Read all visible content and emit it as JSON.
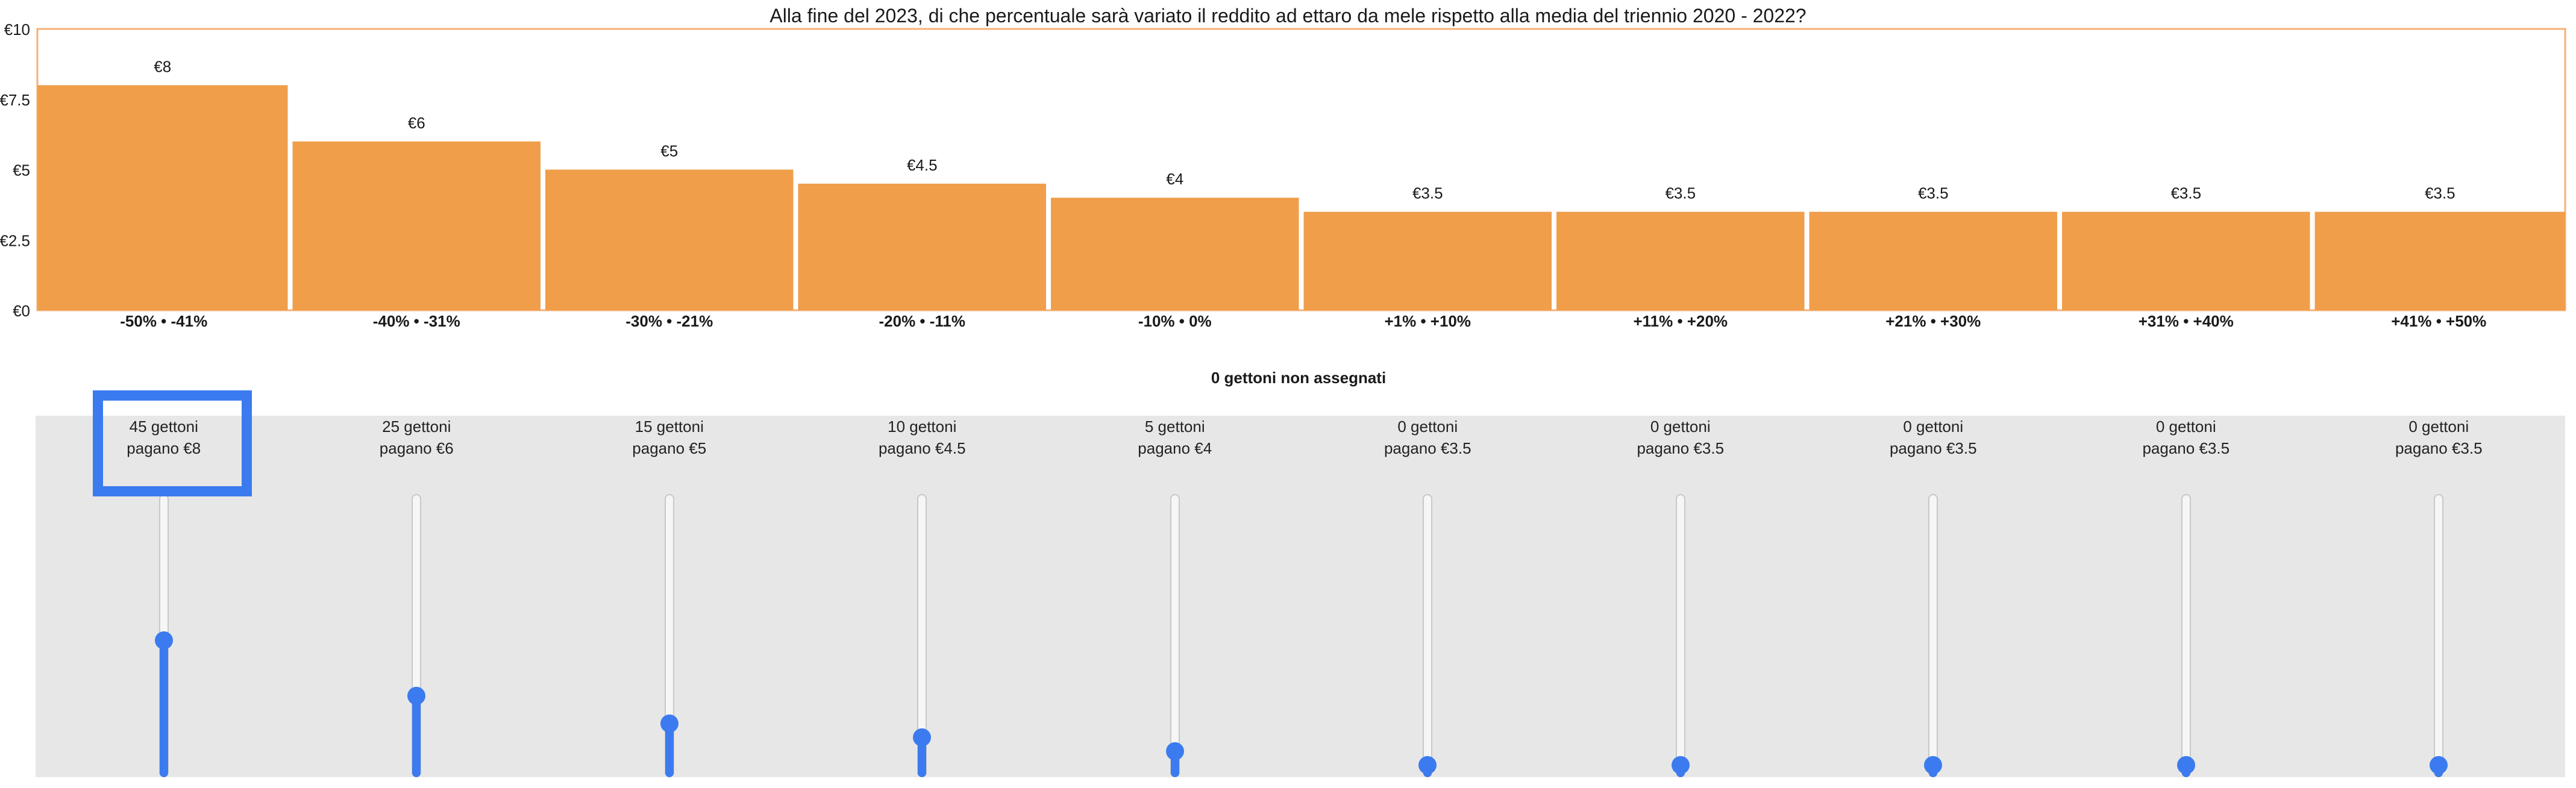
{
  "title": "Alla fine del 2023, di che percentuale sarà variato il reddito ad ettaro da mele rispetto alla media del triennio 2020 - 2022?",
  "colors": {
    "bar": "#f09e4a",
    "frame": "#f4b279",
    "accent": "#3b7bef",
    "panel": "#e7e7e7"
  },
  "chart_data": {
    "type": "bar",
    "title": "Alla fine del 2023, di che percentuale sarà variato il reddito ad ettaro da mele rispetto alla media del triennio 2020 - 2022?",
    "categories": [
      "-50% • -41%",
      "-40% • -31%",
      "-30% • -21%",
      "-20% • -11%",
      "-10% • 0%",
      "+1% • +10%",
      "+11% • +20%",
      "+21% • +30%",
      "+31% • +40%",
      "+41% • +50%"
    ],
    "values": [
      8,
      6,
      5,
      4.5,
      4,
      3.5,
      3.5,
      3.5,
      3.5,
      3.5
    ],
    "data_labels": [
      "€8",
      "€6",
      "€5",
      "€4.5",
      "€4",
      "€3.5",
      "€3.5",
      "€3.5",
      "€3.5",
      "€3.5"
    ],
    "ylim": [
      0,
      10
    ],
    "yticks": [
      0,
      2.5,
      5,
      7.5,
      10
    ],
    "ytick_labels": [
      "€0",
      "€2.5",
      "€5",
      "€7.5",
      "€10"
    ],
    "grid": false,
    "xlabel": "",
    "ylabel": ""
  },
  "tokens": {
    "unassigned_label": "0 gettoni non assegnati",
    "max": 100,
    "sliders": [
      {
        "count_label": "45 gettoni",
        "pay_label": "pagano €8",
        "value": 45
      },
      {
        "count_label": "25 gettoni",
        "pay_label": "pagano €6",
        "value": 25
      },
      {
        "count_label": "15 gettoni",
        "pay_label": "pagano €5",
        "value": 15
      },
      {
        "count_label": "10 gettoni",
        "pay_label": "pagano €4.5",
        "value": 10
      },
      {
        "count_label": "5 gettoni",
        "pay_label": "pagano €4",
        "value": 5
      },
      {
        "count_label": "0 gettoni",
        "pay_label": "pagano €3.5",
        "value": 0
      },
      {
        "count_label": "0 gettoni",
        "pay_label": "pagano €3.5",
        "value": 0
      },
      {
        "count_label": "0 gettoni",
        "pay_label": "pagano €3.5",
        "value": 0
      },
      {
        "count_label": "0 gettoni",
        "pay_label": "pagano €3.5",
        "value": 0
      },
      {
        "count_label": "0 gettoni",
        "pay_label": "pagano €3.5",
        "value": 0
      }
    ]
  }
}
